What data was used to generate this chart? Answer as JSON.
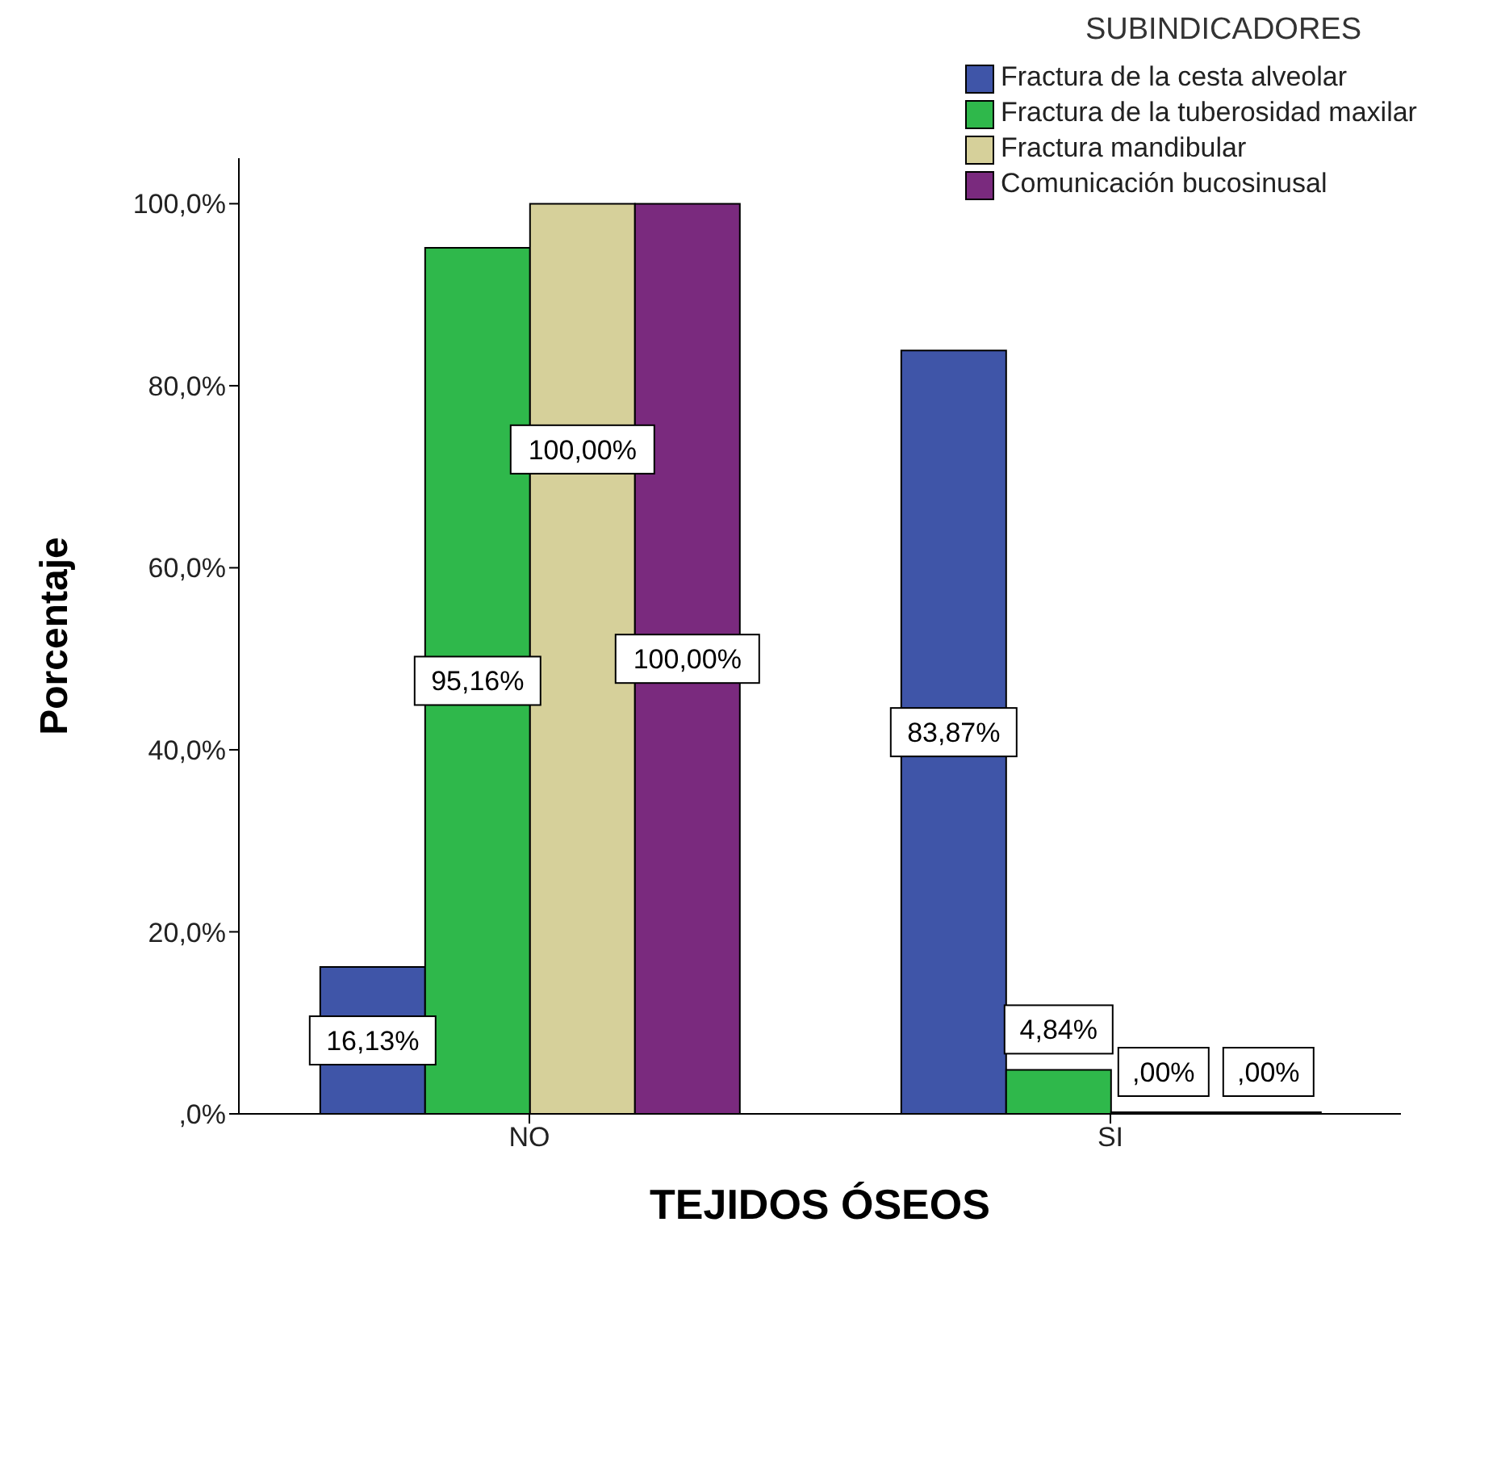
{
  "chart_data": {
    "type": "bar",
    "xlabel": "TEJIDOS ÓSEOS",
    "ylabel": "Porcentaje",
    "legend_title": "SUBINDICADORES",
    "legend": "top right",
    "grid": false,
    "categories": [
      "NO",
      "SI"
    ],
    "ylim": [
      0,
      105
    ],
    "yticks": [
      {
        "value": 0,
        "label": ",0%"
      },
      {
        "value": 20,
        "label": "20,0%"
      },
      {
        "value": 40,
        "label": "40,0%"
      },
      {
        "value": 60,
        "label": "60,0%"
      },
      {
        "value": 80,
        "label": "80,0%"
      },
      {
        "value": 100,
        "label": "100,0%"
      }
    ],
    "series": [
      {
        "name": "Fractura de la cesta alveolar",
        "color": "#3f55a8",
        "values": [
          16.13,
          83.87
        ],
        "value_labels": [
          "16,13%",
          "83,87%"
        ]
      },
      {
        "name": "Fractura de la tuberosidad maxilar",
        "color": "#2fb84b",
        "values": [
          95.16,
          4.84
        ],
        "value_labels": [
          "95,16%",
          "4,84%"
        ]
      },
      {
        "name": "Fractura mandibular",
        "color": "#d6d09a",
        "values": [
          100,
          0
        ],
        "value_labels": [
          "100,00%",
          ",00%"
        ]
      },
      {
        "name": "Comunicación bucosinusal",
        "color": "#7a2a7e",
        "values": [
          100,
          0
        ],
        "value_labels": [
          "100,00%",
          ",00%"
        ]
      }
    ]
  }
}
